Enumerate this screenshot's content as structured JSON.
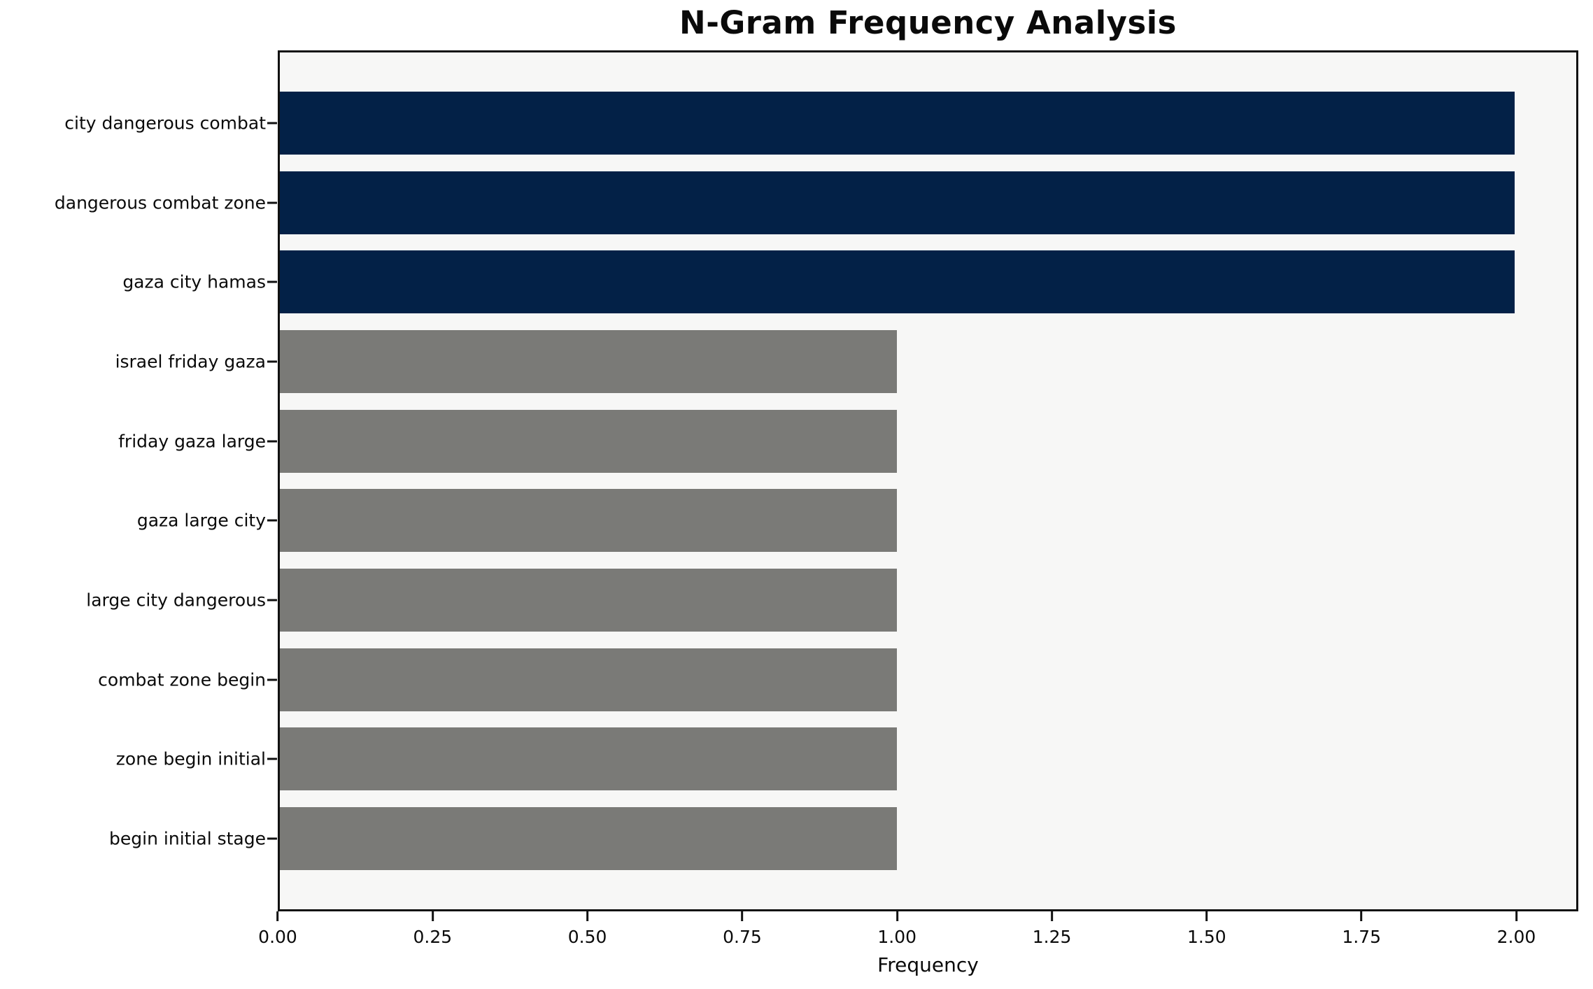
{
  "chart_data": {
    "type": "bar",
    "orientation": "horizontal",
    "title": "N-Gram Frequency Analysis",
    "xlabel": "Frequency",
    "ylabel": "",
    "categories": [
      "city dangerous combat",
      "dangerous combat zone",
      "gaza city hamas",
      "israel friday gaza",
      "friday gaza large",
      "gaza large city",
      "large city dangerous",
      "combat zone begin",
      "zone begin initial",
      "begin initial stage"
    ],
    "values": [
      2,
      2,
      2,
      1,
      1,
      1,
      1,
      1,
      1,
      1
    ],
    "bar_colors": [
      "#032147",
      "#032147",
      "#032147",
      "#7a7a77",
      "#7a7a77",
      "#7a7a77",
      "#7a7a77",
      "#7a7a77",
      "#7a7a77",
      "#7a7a77"
    ],
    "xlim": [
      0,
      2.1
    ],
    "x_ticks": [
      {
        "value": 0.0,
        "label": "0.00"
      },
      {
        "value": 0.25,
        "label": "0.25"
      },
      {
        "value": 0.5,
        "label": "0.50"
      },
      {
        "value": 0.75,
        "label": "0.75"
      },
      {
        "value": 1.0,
        "label": "1.00"
      },
      {
        "value": 1.25,
        "label": "1.25"
      },
      {
        "value": 1.5,
        "label": "1.50"
      },
      {
        "value": 1.75,
        "label": "1.75"
      },
      {
        "value": 2.0,
        "label": "2.00"
      }
    ],
    "legend": null,
    "grid": false,
    "colors": {
      "highlight_bar": "#032147",
      "default_bar": "#7a7a77",
      "plot_background": "#f7f7f6",
      "figure_background": "#ffffff",
      "axis_line": "#111111",
      "text": "#0a0a0a"
    }
  }
}
